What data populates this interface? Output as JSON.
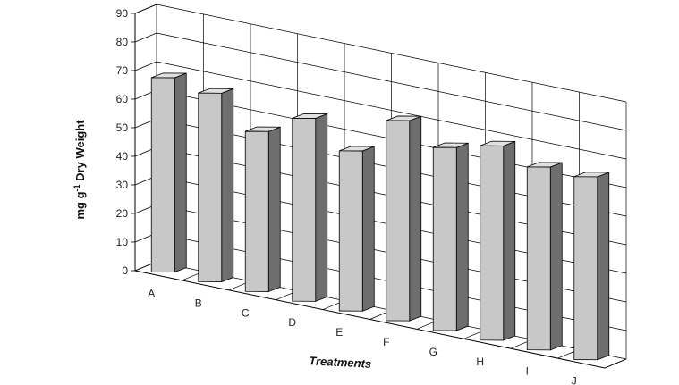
{
  "chart_data": {
    "type": "bar",
    "categories": [
      "A",
      "B",
      "C",
      "D",
      "E",
      "F",
      "G",
      "H",
      "I",
      "J"
    ],
    "values": [
      68,
      66,
      56,
      64,
      56,
      70,
      64,
      68,
      64,
      64
    ],
    "ylim": [
      0,
      90
    ],
    "yticks": [
      "0",
      "10",
      "20",
      "30",
      "40",
      "50",
      "60",
      "70",
      "80",
      "90"
    ],
    "xlabel": "Treatments",
    "ylabel": "mg g-1 Dry Weight",
    "ylabel_parts": {
      "pre": "mg g",
      "sup": "-1",
      "post": " Dry Weight"
    },
    "grid": true,
    "style": "3d-column",
    "colors": {
      "bar_front": "#c8c8c8",
      "bar_side": "#6e6e6e",
      "bar_top": "#e0e0e0",
      "grid": "#000000"
    }
  }
}
